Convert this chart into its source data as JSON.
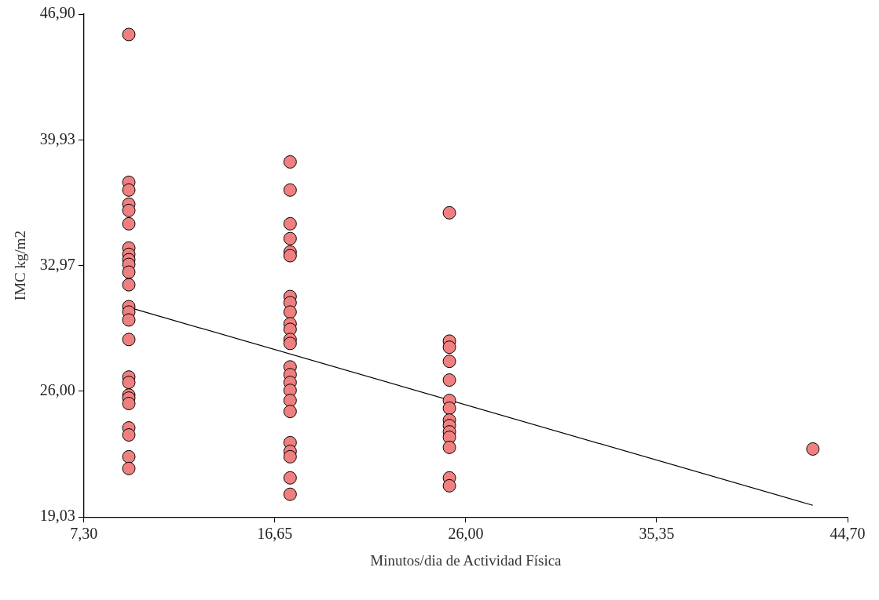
{
  "chart_data": {
    "type": "scatter",
    "xlabel": "Minutos/dia de Actividad Física",
    "ylabel": "IMC kg/m2",
    "xlim": [
      7.3,
      44.7
    ],
    "ylim": [
      19.03,
      46.9
    ],
    "xticks": [
      {
        "value": 7.3,
        "label": "7,30"
      },
      {
        "value": 16.65,
        "label": "16,65"
      },
      {
        "value": 26,
        "label": "26,00"
      },
      {
        "value": 35.35,
        "label": "35,35"
      },
      {
        "value": 44.7,
        "label": "44,70"
      }
    ],
    "yticks": [
      {
        "value": 19.03,
        "label": "19,03"
      },
      {
        "value": 26,
        "label": "26,00"
      },
      {
        "value": 32.97,
        "label": "32,97"
      },
      {
        "value": 39.93,
        "label": "39,93"
      },
      {
        "value": 46.9,
        "label": "46,90"
      }
    ],
    "grid": false,
    "legend": false,
    "marker": "circle",
    "series": [
      {
        "color": "#f08080",
        "x": [
          9.5,
          9.5,
          9.5,
          9.5,
          9.5,
          9.5,
          9.5,
          9.5,
          9.5,
          9.5,
          9.5,
          9.5,
          9.5,
          9.5,
          9.5,
          9.5,
          9.5,
          9.5,
          9.5,
          9.5,
          9.5,
          9.5,
          9.5,
          9.5,
          9.5,
          17.4,
          17.4,
          17.4,
          17.4,
          17.4,
          17.4,
          17.4,
          17.4,
          17.4,
          17.4,
          17.4,
          17.4,
          17.4,
          17.4,
          17.4,
          17.4,
          17.4,
          17.4,
          17.4,
          17.4,
          17.4,
          17.4,
          17.4,
          17.4,
          25.2,
          25.2,
          25.2,
          25.2,
          25.2,
          25.2,
          25.2,
          25.2,
          25.2,
          25.2,
          25.2,
          25.2,
          25.2,
          25.2,
          43.0
        ],
        "values": [
          45.77,
          37.58,
          37.15,
          36.37,
          36.02,
          35.28,
          33.94,
          33.59,
          33.29,
          33.03,
          32.6,
          31.9,
          30.69,
          30.39,
          29.95,
          28.87,
          26.79,
          26.49,
          25.79,
          25.62,
          25.32,
          23.97,
          23.58,
          22.37,
          21.72,
          38.71,
          37.15,
          35.28,
          34.46,
          33.72,
          33.51,
          31.25,
          30.91,
          30.39,
          29.74,
          29.43,
          28.87,
          28.65,
          27.35,
          26.92,
          26.49,
          26.05,
          25.49,
          24.88,
          23.15,
          22.67,
          22.37,
          21.2,
          20.29,
          35.89,
          28.78,
          28.44,
          27.66,
          26.62,
          25.49,
          25.06,
          24.4,
          24.1,
          23.75,
          23.45,
          22.89,
          21.2,
          20.76,
          22.8
        ]
      },
      {
        "type": "line",
        "color": "#000000",
        "marker": "none",
        "x": [
          9.5,
          43.0
        ],
        "values": [
          30.65,
          19.68
        ]
      }
    ]
  }
}
